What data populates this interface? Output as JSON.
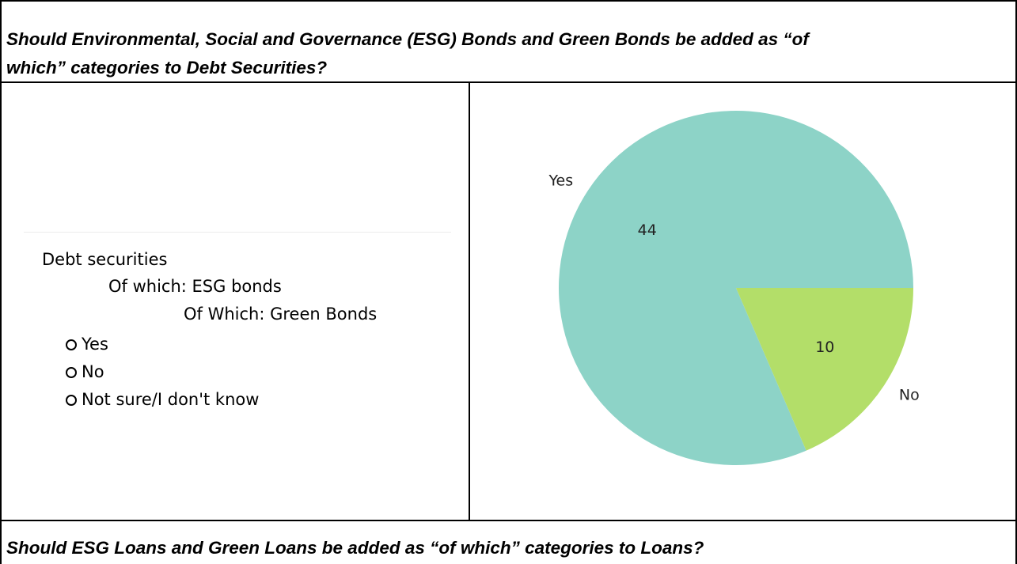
{
  "question_1": "Should Environmental, Social and Governance (ESG) Bonds and Green Bonds be added as “of which” categories to Debt Securities?",
  "question_1_line1": "Should Environmental, Social and Governance (ESG) Bonds and Green Bonds be added as “of",
  "question_1_line2": "which” categories to Debt Securities?",
  "question_2": "Should ESG Loans and Green Loans be added as “of which” categories to Loans?",
  "survey": {
    "item_1": "Debt securities",
    "item_2": "Of which: ESG bonds",
    "item_3": "Of Which: Green Bonds",
    "options": [
      "Yes",
      "No",
      "Not sure/I don't know"
    ]
  },
  "chart_data": {
    "type": "pie",
    "categories": [
      "Yes",
      "No"
    ],
    "values": [
      44,
      10
    ],
    "colors": [
      "#8dd3c7",
      "#b3de69"
    ],
    "title": ""
  }
}
